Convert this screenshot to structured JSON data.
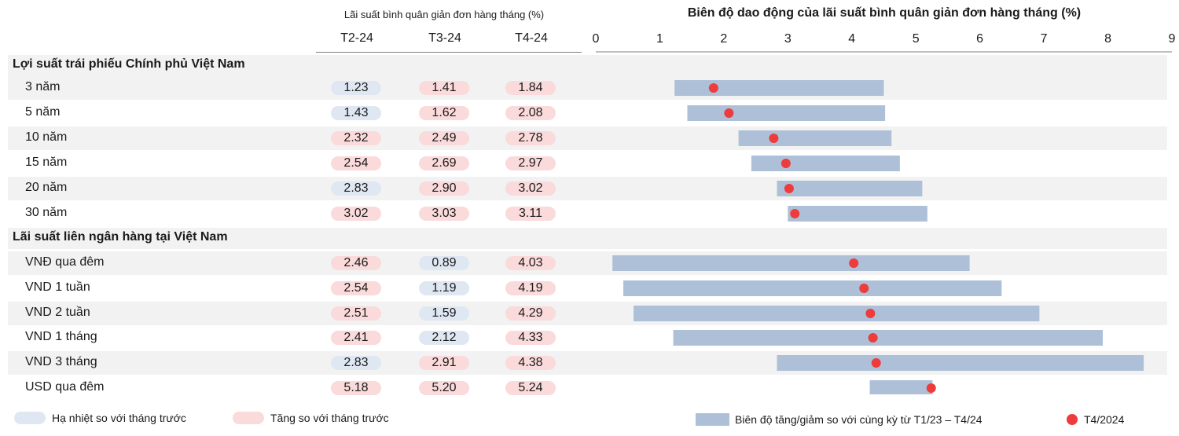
{
  "header": {
    "left_title": "Lãi suất bình quân giản đơn hàng tháng (%)",
    "right_title": "Biên độ dao động của lãi suất bình quân giản đơn hàng tháng (%)",
    "months": [
      "T2-24",
      "T3-24",
      "T4-24"
    ]
  },
  "colors": {
    "pill_down": "#dfe7f2",
    "pill_up": "#fadadb",
    "range_bar": "#aec0d8",
    "marker": "#ee3b3b",
    "row_band": "#f2f2f2"
  },
  "sections": [
    {
      "title": "Lợi suất trái phiếu Chính phủ Việt Nam",
      "rows": [
        {
          "label": "3 năm",
          "values": [
            "1.23",
            "1.41",
            "1.84"
          ],
          "trend": [
            "down",
            "up",
            "up"
          ]
        },
        {
          "label": "5 năm",
          "values": [
            "1.43",
            "1.62",
            "2.08"
          ],
          "trend": [
            "down",
            "up",
            "up"
          ]
        },
        {
          "label": "10 năm",
          "values": [
            "2.32",
            "2.49",
            "2.78"
          ],
          "trend": [
            "up",
            "up",
            "up"
          ]
        },
        {
          "label": "15 năm",
          "values": [
            "2.54",
            "2.69",
            "2.97"
          ],
          "trend": [
            "up",
            "up",
            "up"
          ]
        },
        {
          "label": "20 năm",
          "values": [
            "2.83",
            "2.90",
            "3.02"
          ],
          "trend": [
            "down",
            "up",
            "up"
          ]
        },
        {
          "label": "30 năm",
          "values": [
            "3.02",
            "3.03",
            "3.11"
          ],
          "trend": [
            "up",
            "up",
            "up"
          ]
        }
      ]
    },
    {
      "title": "Lãi suất liên ngân hàng tại Việt Nam",
      "rows": [
        {
          "label": "VNĐ qua đêm",
          "values": [
            "2.46",
            "0.89",
            "4.03"
          ],
          "trend": [
            "up",
            "down",
            "up"
          ]
        },
        {
          "label": "VND 1 tuần",
          "values": [
            "2.54",
            "1.19",
            "4.19"
          ],
          "trend": [
            "up",
            "down",
            "up"
          ]
        },
        {
          "label": "VND 2 tuần",
          "values": [
            "2.51",
            "1.59",
            "4.29"
          ],
          "trend": [
            "up",
            "down",
            "up"
          ]
        },
        {
          "label": "VND 1 tháng",
          "values": [
            "2.41",
            "2.12",
            "4.33"
          ],
          "trend": [
            "up",
            "down",
            "up"
          ]
        },
        {
          "label": "VND 3 tháng",
          "values": [
            "2.83",
            "2.91",
            "4.38"
          ],
          "trend": [
            "down",
            "up",
            "up"
          ]
        },
        {
          "label": "USD qua đêm",
          "values": [
            "5.18",
            "5.20",
            "5.24"
          ],
          "trend": [
            "up",
            "up",
            "up"
          ]
        }
      ]
    }
  ],
  "legend": {
    "down_label": "Hạ nhiệt so với tháng trước",
    "up_label": "Tăng so với tháng trước",
    "range_label": "Biên độ tăng/giảm so với cùng kỳ từ T1/23 – T4/24",
    "marker_label": "T4/2024"
  },
  "chart_data": {
    "type": "bar",
    "title": "Biên độ dao động của lãi suất bình quân giản đơn hàng tháng (%)",
    "xlim": [
      0,
      9
    ],
    "xticks": [
      0,
      1,
      2,
      3,
      4,
      5,
      6,
      7,
      8,
      9
    ],
    "categories": [
      "3 năm",
      "5 năm",
      "10 năm",
      "15 năm",
      "20 năm",
      "30 năm",
      "VNĐ qua đêm",
      "VND 1 tuần",
      "VND 2 tuần",
      "VND 1 tháng",
      "VND 3 tháng",
      "USD qua đêm"
    ],
    "series": [
      {
        "name": "Biên độ tăng/giảm so với cùng kỳ từ T1/23 – T4/24",
        "ranges": [
          [
            1.23,
            4.5
          ],
          [
            1.43,
            4.52
          ],
          [
            2.23,
            4.62
          ],
          [
            2.43,
            4.75
          ],
          [
            2.83,
            5.1
          ],
          [
            3.0,
            5.18
          ],
          [
            0.26,
            5.84
          ],
          [
            0.43,
            6.34
          ],
          [
            0.59,
            6.93
          ],
          [
            1.21,
            7.92
          ],
          [
            2.83,
            8.56
          ],
          [
            4.28,
            5.26
          ]
        ]
      },
      {
        "name": "T4/2024",
        "values": [
          1.84,
          2.08,
          2.78,
          2.97,
          3.02,
          3.11,
          4.03,
          4.19,
          4.29,
          4.33,
          4.38,
          5.24
        ]
      }
    ]
  }
}
